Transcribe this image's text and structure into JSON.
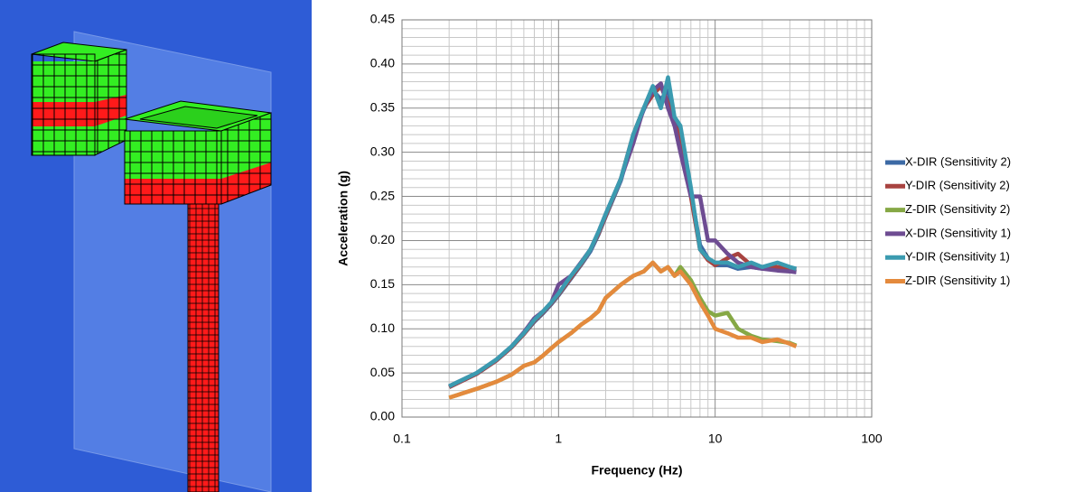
{
  "chart_data": {
    "type": "line",
    "x_label": "Frequency (Hz)",
    "y_label": "Acceleration (g)",
    "x": [
      0.2,
      0.3,
      0.4,
      0.5,
      0.6,
      0.7,
      0.8,
      0.9,
      1,
      1.2,
      1.4,
      1.6,
      1.8,
      2,
      2.5,
      3,
      3.5,
      4,
      4.5,
      5,
      5.5,
      6,
      7,
      8,
      9,
      10,
      12,
      14,
      17,
      20,
      25,
      30,
      33
    ],
    "x_log": true,
    "grid": true,
    "minor_grid": true,
    "legend": "right",
    "xlim": [
      0.1,
      100
    ],
    "xticks": [
      0.1,
      1,
      10,
      100
    ],
    "ylim": [
      0,
      0.45
    ],
    "yticks": [
      {
        "value": 0,
        "label": "0.00"
      },
      0.05,
      {
        "value": 0.1,
        "label": "0.10"
      },
      0.15,
      {
        "value": 0.2,
        "label": "0.20"
      },
      0.25,
      {
        "value": 0.3,
        "label": "0.30"
      },
      0.35,
      {
        "value": 0.4,
        "label": "0.40"
      },
      0.45
    ],
    "series": [
      {
        "name": "X-DIR (Sensitivity 2)",
        "color": "#3c6aa5",
        "values": [
          0.034,
          0.049,
          0.064,
          0.079,
          0.094,
          0.108,
          0.118,
          0.128,
          0.138,
          0.157,
          0.173,
          0.188,
          0.207,
          0.227,
          0.268,
          0.318,
          0.348,
          0.37,
          0.36,
          0.37,
          0.335,
          0.325,
          0.255,
          0.195,
          0.18,
          0.172,
          0.172,
          0.168,
          0.17,
          0.168,
          0.168,
          0.166,
          0.165
        ]
      },
      {
        "name": "Y-DIR (Sensitivity 2)",
        "color": "#a84340",
        "values": [
          0.034,
          0.049,
          0.064,
          0.079,
          0.094,
          0.109,
          0.119,
          0.129,
          0.139,
          0.158,
          0.174,
          0.19,
          0.208,
          0.228,
          0.27,
          0.32,
          0.35,
          0.365,
          0.375,
          0.355,
          0.33,
          0.32,
          0.25,
          0.19,
          0.178,
          0.172,
          0.18,
          0.185,
          0.172,
          0.17,
          0.17,
          0.168,
          0.167
        ]
      },
      {
        "name": "Z-DIR (Sensitivity 2)",
        "color": "#86a845",
        "values": [
          0.022,
          0.032,
          0.04,
          0.048,
          0.058,
          0.062,
          0.07,
          0.078,
          0.085,
          0.095,
          0.105,
          0.112,
          0.12,
          0.135,
          0.15,
          0.16,
          0.165,
          0.175,
          0.165,
          0.17,
          0.16,
          0.17,
          0.155,
          0.135,
          0.12,
          0.115,
          0.118,
          0.1,
          0.092,
          0.088,
          0.086,
          0.084,
          0.081
        ]
      },
      {
        "name": "X-DIR (Sensitivity 1)",
        "color": "#6e4c92",
        "values": [
          0.035,
          0.05,
          0.065,
          0.08,
          0.096,
          0.112,
          0.12,
          0.13,
          0.15,
          0.16,
          0.176,
          0.19,
          0.21,
          0.23,
          0.27,
          0.31,
          0.35,
          0.37,
          0.378,
          0.35,
          0.33,
          0.3,
          0.25,
          0.25,
          0.2,
          0.2,
          0.185,
          0.175,
          0.17,
          0.168,
          0.166,
          0.165,
          0.164
        ]
      },
      {
        "name": "Y-DIR (Sensitivity 1)",
        "color": "#3b9bb0",
        "values": [
          0.035,
          0.05,
          0.065,
          0.08,
          0.095,
          0.11,
          0.12,
          0.13,
          0.14,
          0.16,
          0.175,
          0.19,
          0.21,
          0.23,
          0.27,
          0.32,
          0.35,
          0.375,
          0.35,
          0.385,
          0.34,
          0.33,
          0.26,
          0.19,
          0.18,
          0.175,
          0.175,
          0.17,
          0.175,
          0.17,
          0.175,
          0.17,
          0.168
        ]
      },
      {
        "name": "Z-DIR (Sensitivity 1)",
        "color": "#e48a3d",
        "values": [
          0.022,
          0.032,
          0.04,
          0.048,
          0.058,
          0.062,
          0.07,
          0.078,
          0.085,
          0.095,
          0.105,
          0.112,
          0.12,
          0.135,
          0.15,
          0.16,
          0.165,
          0.175,
          0.165,
          0.17,
          0.16,
          0.165,
          0.15,
          0.13,
          0.115,
          0.1,
          0.095,
          0.09,
          0.09,
          0.085,
          0.088,
          0.083,
          0.08
        ]
      }
    ]
  }
}
